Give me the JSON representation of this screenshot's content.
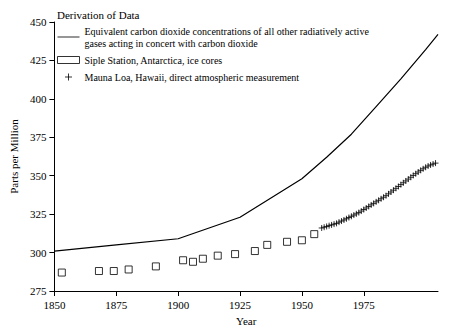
{
  "chart_data": {
    "type": "line",
    "title": "Derivation of Data",
    "x_label": "Year",
    "y_label": "Parts per Million",
    "xlim": [
      1850,
      2005
    ],
    "xticks": [
      1850,
      1875,
      1900,
      1925,
      1950,
      1975
    ],
    "ylim": [
      275,
      450
    ],
    "yticks": [
      275,
      300,
      325,
      350,
      375,
      400,
      425,
      450
    ],
    "grid": false,
    "legend": "top-left",
    "series": [
      {
        "name": "Equivalent carbon dioxide concentrations of all other radiatively active gases acting in concert with carbon dioxide",
        "type": "line",
        "marker": "none",
        "line_style": "solid",
        "color": "#000000",
        "x": [
          1850,
          1875,
          1900,
          1925,
          1950,
          1960,
          1970,
          1980,
          1990,
          2000,
          2005
        ],
        "values": [
          301,
          305,
          309,
          323,
          348,
          362,
          377,
          395,
          413,
          432,
          442
        ]
      },
      {
        "name": "Siple Station, Antarctica, ice cores",
        "type": "scatter",
        "marker": "square",
        "color": "#000000",
        "x": [
          1853,
          1868,
          1874,
          1880,
          1891,
          1902,
          1906,
          1910,
          1916,
          1923,
          1931,
          1936,
          1944,
          1950,
          1955
        ],
        "values": [
          287,
          288,
          288,
          289,
          291,
          295,
          294,
          296,
          298,
          299,
          301,
          305,
          307,
          308,
          312
        ]
      },
      {
        "name": "Mauna Loa, Hawaii, direct atmospheric measurement",
        "type": "scatter",
        "marker": "plus",
        "color": "#000000",
        "x": [
          1958,
          1959,
          1960,
          1961,
          1962,
          1963,
          1964,
          1965,
          1966,
          1967,
          1968,
          1969,
          1970,
          1971,
          1972,
          1973,
          1974,
          1975,
          1976,
          1977,
          1978,
          1979,
          1980,
          1981,
          1982,
          1983,
          1984,
          1985,
          1986,
          1987,
          1988,
          1989,
          1990,
          1991,
          1992,
          1993,
          1994,
          1995,
          1996,
          1997,
          1998,
          1999,
          2000,
          2001,
          2002,
          2003,
          2004
        ],
        "values": [
          316,
          316.5,
          317,
          317.5,
          318,
          318.5,
          319,
          319.8,
          320.5,
          321.2,
          322,
          322.8,
          323.6,
          324.4,
          325.2,
          326,
          327,
          328,
          329,
          330,
          331,
          332,
          333,
          334,
          335,
          336,
          337,
          338.2,
          339.4,
          340.6,
          341.8,
          343,
          344.2,
          345.4,
          346.6,
          347.8,
          349,
          350.2,
          351.3,
          352.4,
          353.5,
          354.5,
          355.5,
          356.3,
          357,
          357.6,
          358.2
        ]
      }
    ]
  }
}
